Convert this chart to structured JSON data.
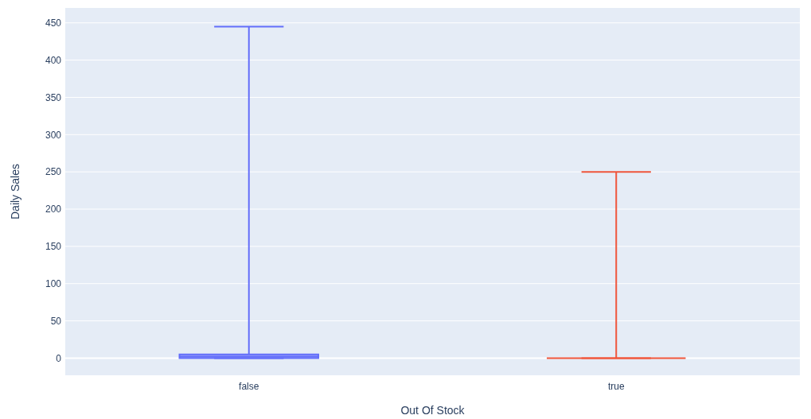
{
  "chart_data": {
    "type": "box",
    "xlabel": "Out Of Stock",
    "ylabel": "Daily Sales",
    "categories": [
      "false",
      "true"
    ],
    "series": [
      {
        "color": "#636efa",
        "boxes": [
          {
            "low": 0,
            "q1": 0,
            "median": 2,
            "q3": 5,
            "high": 445
          },
          null
        ]
      },
      {
        "color": "#ef553b",
        "boxes": [
          null,
          {
            "low": 0,
            "q1": 0,
            "median": 0,
            "q3": 0,
            "high": 250
          }
        ]
      }
    ],
    "ylim": [
      -23,
      470
    ],
    "yticks": [
      0,
      50,
      100,
      150,
      200,
      250,
      300,
      350,
      400,
      450
    ],
    "grid": "y"
  }
}
